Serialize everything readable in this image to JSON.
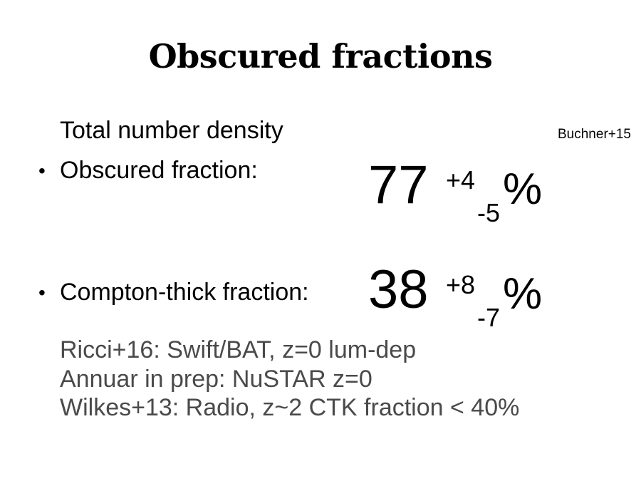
{
  "slide": {
    "title": "Obscured fractions",
    "line_total": "Total number density",
    "reference": "Buchner+15",
    "bullet_glyph": "•",
    "obscured": {
      "label": "Obscured fraction:",
      "value": "77",
      "plus": "+4",
      "minus": "-5",
      "unit": "%"
    },
    "compton": {
      "label": "Compton-thick fraction:",
      "value": "38",
      "plus": "+8",
      "minus": "-7",
      "unit": "%"
    },
    "notes": [
      "Ricci+16: Swift/BAT, z=0 lum-dep",
      "Annuar in prep: NuSTAR z=0",
      "Wilkes+13: Radio, z~2 CTK fraction < 40%"
    ]
  }
}
